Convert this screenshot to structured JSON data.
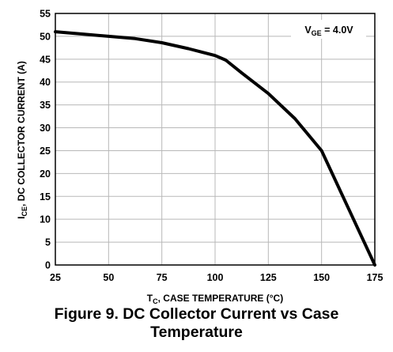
{
  "chart_data": {
    "type": "line",
    "xlabel": {
      "main": "T",
      "sub": "C",
      "rest": ", CASE TEMPERATURE (°C)"
    },
    "ylabel": {
      "main": "I",
      "sub": "CE",
      "rest": ", DC COLLECTOR CURRENT (A)"
    },
    "xlim": [
      25,
      175
    ],
    "ylim": [
      0,
      55
    ],
    "x_ticks": [
      25,
      50,
      75,
      100,
      125,
      150,
      175
    ],
    "y_ticks": [
      0,
      5,
      10,
      15,
      20,
      25,
      30,
      35,
      40,
      45,
      50,
      55
    ],
    "grid": true,
    "annotation": {
      "main": "V",
      "sub": "GE",
      "rest": " = 4.0V"
    },
    "series": [
      {
        "x": [
          25,
          37.5,
          50,
          62.5,
          75,
          87.5,
          100,
          105,
          112.5,
          125,
          137.5,
          150,
          162.5,
          175
        ],
        "values": [
          51,
          50.5,
          50,
          49.5,
          48.6,
          47.3,
          45.8,
          44.8,
          42,
          37.5,
          32,
          25,
          12.5,
          0
        ]
      }
    ]
  },
  "caption": {
    "line1": "Figure 9.  DC Collector Current vs Case",
    "line2": "Temperature"
  }
}
